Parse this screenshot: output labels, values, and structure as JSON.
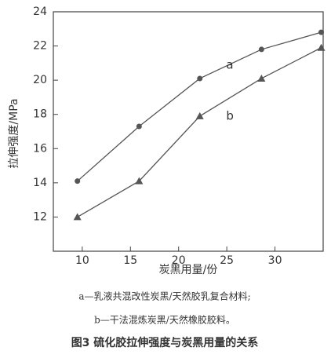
{
  "chart_data": {
    "type": "line",
    "title": "图3 硫化胶拉伸强度与炭黑用量的关系",
    "notes": [
      "a—乳液共混改性炭黑/天然胶乳复合材料;",
      "b—干法混炼炭黑/天然橡胶胶料。"
    ],
    "x_label": "炭黑用量/份",
    "y_label": "拉伸强度/MPa",
    "x": [
      9.5,
      15.9,
      22.2,
      28.6,
      34.8
    ],
    "series": [
      {
        "name": "a",
        "color": "#555555",
        "marker": "circle",
        "values": [
          14.1,
          17.3,
          20.1,
          21.8,
          22.8
        ]
      },
      {
        "name": "b",
        "color": "#555555",
        "marker": "triangle",
        "values": [
          12.0,
          14.1,
          17.9,
          20.1,
          21.9
        ]
      }
    ],
    "xlim": [
      7,
      35
    ],
    "xticks": [
      10,
      15,
      20,
      25,
      30
    ],
    "ylim": [
      10,
      24
    ],
    "yticks": [
      12,
      14,
      16,
      18,
      20,
      22,
      24
    ]
  }
}
